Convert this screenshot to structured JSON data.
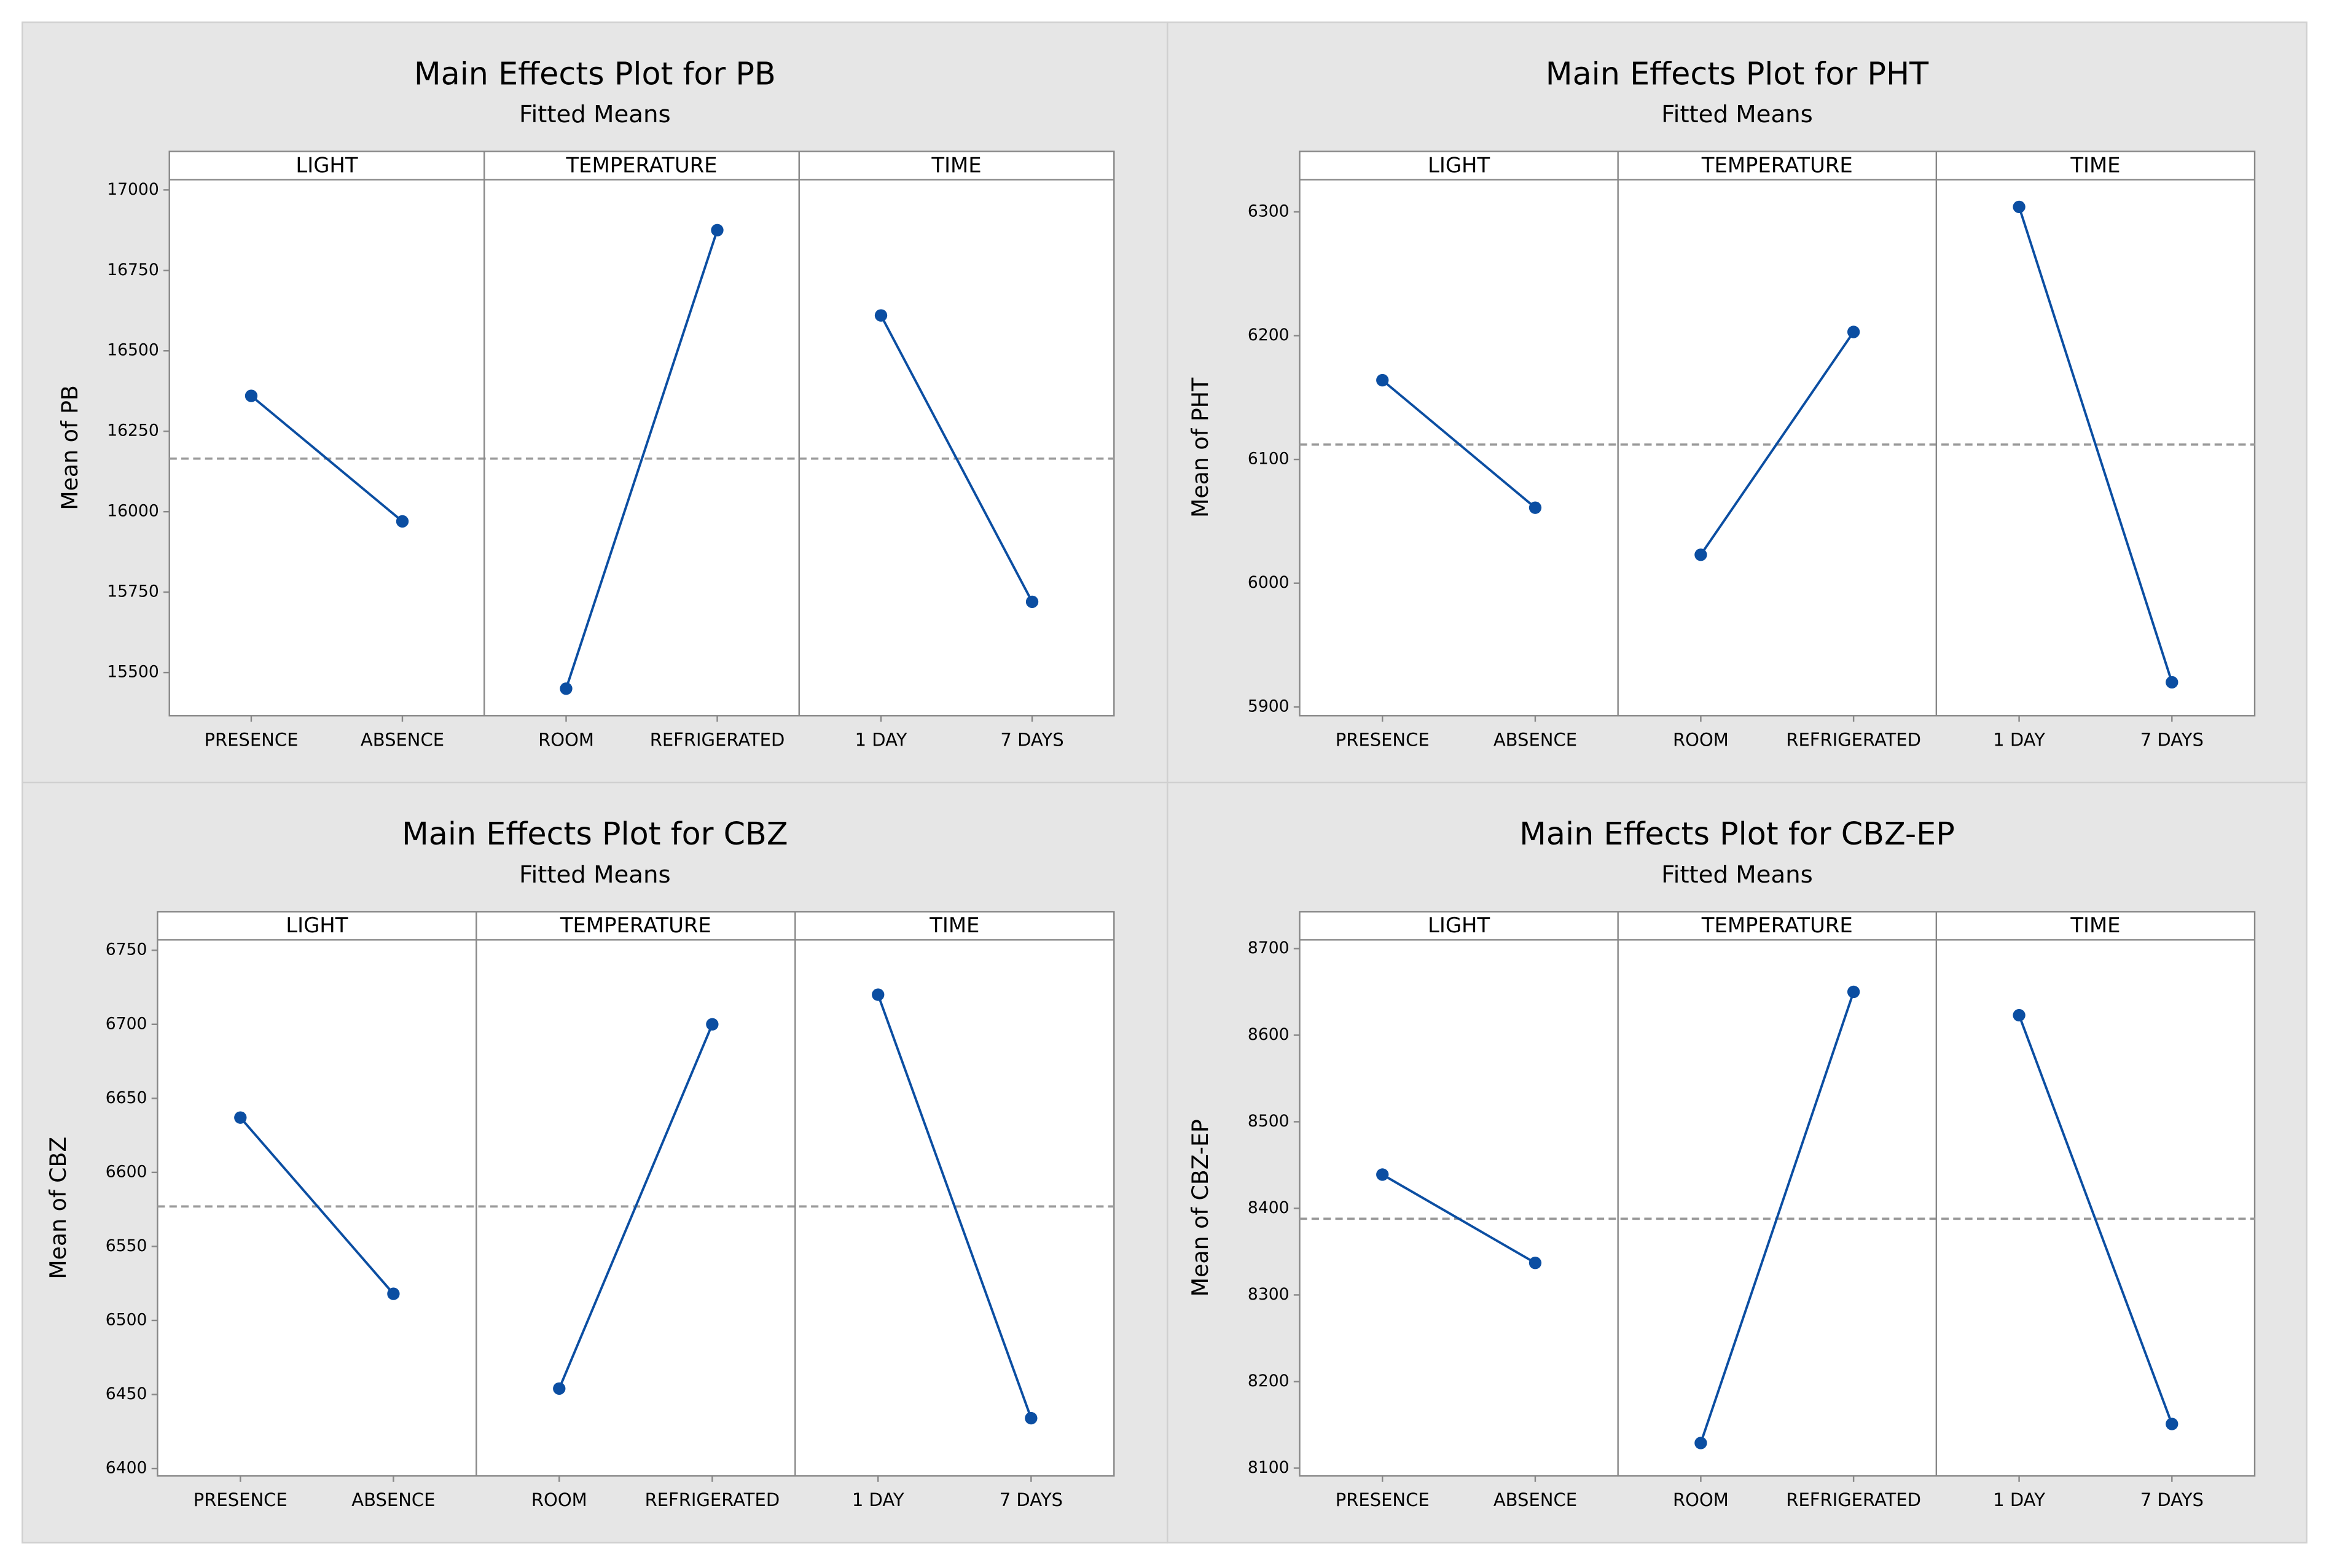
{
  "chart_data": [
    {
      "type": "line",
      "title": "Main Effects Plot for PB",
      "subtitle": "Fitted Means",
      "ylabel": "Mean of PB",
      "ylim": [
        15366,
        17032
      ],
      "yticks": [
        15500,
        15750,
        16000,
        16250,
        16500,
        16750,
        17000
      ],
      "mean": 16165,
      "color": "#0b4ea2",
      "panels": [
        {
          "name": "LIGHT",
          "categories": [
            "PRESENCE",
            "ABSENCE"
          ],
          "values": [
            16360,
            15970
          ]
        },
        {
          "name": "TEMPERATURE",
          "categories": [
            "ROOM",
            "REFRIGERATED"
          ],
          "values": [
            15450,
            16875
          ]
        },
        {
          "name": "TIME",
          "categories": [
            "1 DAY",
            "7 DAYS"
          ],
          "values": [
            16610,
            15720
          ]
        }
      ]
    },
    {
      "type": "line",
      "title": "Main Effects Plot for PHT",
      "subtitle": "Fitted Means",
      "ylabel": "Mean of PHT",
      "ylim": [
        5893,
        6326
      ],
      "yticks": [
        5900,
        6000,
        6100,
        6200,
        6300
      ],
      "mean": 6112,
      "color": "#0b4ea2",
      "panels": [
        {
          "name": "LIGHT",
          "categories": [
            "PRESENCE",
            "ABSENCE"
          ],
          "values": [
            6164,
            6061
          ]
        },
        {
          "name": "TEMPERATURE",
          "categories": [
            "ROOM",
            "REFRIGERATED"
          ],
          "values": [
            6023,
            6203
          ]
        },
        {
          "name": "TIME",
          "categories": [
            "1 DAY",
            "7 DAYS"
          ],
          "values": [
            6304,
            5920
          ]
        }
      ]
    },
    {
      "type": "line",
      "title": "Main Effects Plot for CBZ",
      "subtitle": "Fitted Means",
      "ylabel": "Mean of CBZ",
      "ylim": [
        6395,
        6757
      ],
      "yticks": [
        6400,
        6450,
        6500,
        6550,
        6600,
        6650,
        6700,
        6750
      ],
      "mean": 6577,
      "color": "#0b4ea2",
      "panels": [
        {
          "name": "LIGHT",
          "categories": [
            "PRESENCE",
            "ABSENCE"
          ],
          "values": [
            6637,
            6518
          ]
        },
        {
          "name": "TEMPERATURE",
          "categories": [
            "ROOM",
            "REFRIGERATED"
          ],
          "values": [
            6454,
            6700
          ]
        },
        {
          "name": "TIME",
          "categories": [
            "1 DAY",
            "7 DAYS"
          ],
          "values": [
            6720,
            6434
          ]
        }
      ]
    },
    {
      "type": "line",
      "title": "Main Effects Plot for CBZ-EP",
      "subtitle": "Fitted Means",
      "ylabel": "Mean of CBZ-EP",
      "ylim": [
        8091,
        8710
      ],
      "yticks": [
        8100,
        8200,
        8300,
        8400,
        8500,
        8600,
        8700
      ],
      "mean": 8388,
      "color": "#0b4ea2",
      "panels": [
        {
          "name": "LIGHT",
          "categories": [
            "PRESENCE",
            "ABSENCE"
          ],
          "values": [
            8439,
            8337
          ]
        },
        {
          "name": "TEMPERATURE",
          "categories": [
            "ROOM",
            "REFRIGERATED"
          ],
          "values": [
            8129,
            8650
          ]
        },
        {
          "name": "TIME",
          "categories": [
            "1 DAY",
            "7 DAYS"
          ],
          "values": [
            8623,
            8151
          ]
        }
      ]
    }
  ]
}
